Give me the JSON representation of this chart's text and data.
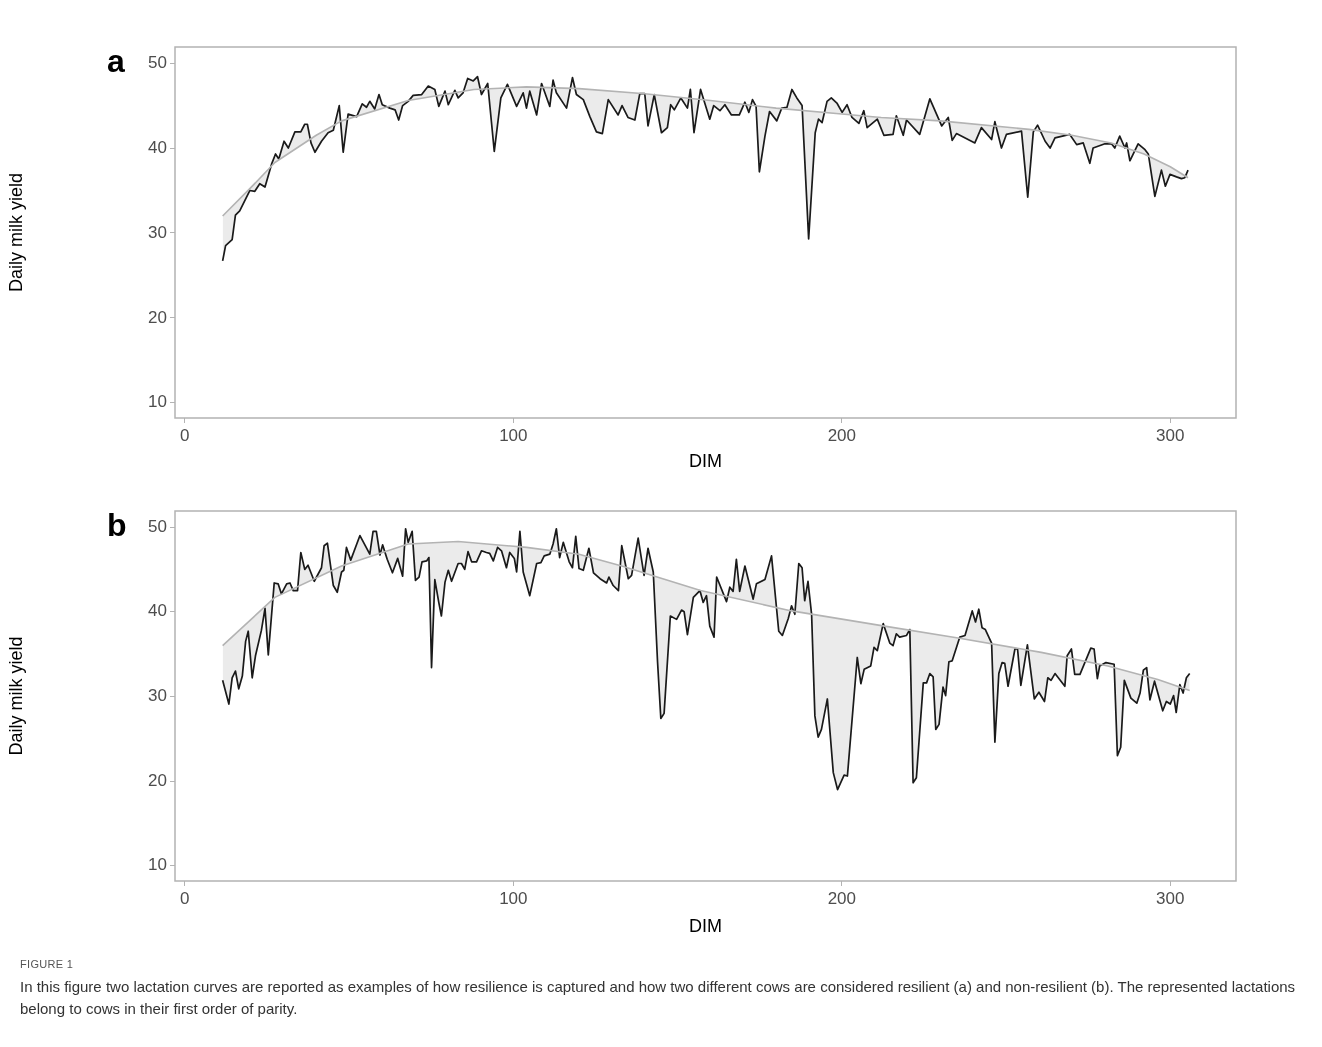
{
  "chart_data": [
    {
      "type": "line",
      "title": "a",
      "xlabel": "DIM",
      "ylabel": "Daily milk yield",
      "xlim": [
        -3,
        320
      ],
      "xticks": [
        0,
        100,
        200,
        300
      ],
      "ylim": [
        8.2,
        51.9
      ],
      "yticks": [
        10,
        20,
        30,
        40,
        50
      ],
      "legend": false,
      "series": [
        {
          "color": "#1a1a1a",
          "x": [
            11.5,
            12.4,
            14.4,
            15.4,
            16.7,
            19.8,
            21.3,
            22.8,
            24.4,
            26.4,
            27.6,
            28.6,
            30.2,
            31.5,
            33.5,
            35.3,
            36.5,
            37.3,
            38.4,
            39.6,
            41.6,
            43.6,
            45.2,
            47,
            48.2,
            49.7,
            52.3,
            54,
            55.3,
            56.3,
            57.8,
            59.1,
            60.1,
            62.4,
            64,
            65.1,
            66.3,
            68,
            69.5,
            72.1,
            74.1,
            76.1,
            77.3,
            79.2,
            80.2,
            82.2,
            83.2,
            84.7,
            86.1,
            87.8,
            89.1,
            90.3,
            92.2,
            94.2,
            96.2,
            98.2,
            101,
            103,
            104,
            105,
            107.1,
            108.6,
            111.1,
            112.1,
            113.1,
            116.2,
            118,
            119.2,
            121.3,
            123.3,
            125.3,
            127.1,
            128.9,
            131.9,
            133.1,
            134.9,
            137,
            138.5,
            140,
            141,
            142.9,
            145.1,
            146.9,
            147.9,
            149,
            151,
            153,
            153.9,
            155,
            157,
            159.8,
            161,
            162.9,
            164.4,
            166.4,
            168.8,
            170.5,
            171.7,
            172.8,
            173.9,
            174.9,
            176.6,
            178,
            180.2,
            181.7,
            183.3,
            184.8,
            186.3,
            187.9,
            189.9,
            191.9,
            192.9,
            194,
            195.5,
            196.8,
            198.5,
            200.1,
            201.6,
            203.1,
            205.2,
            206.7,
            207.7,
            210.8,
            212.8,
            215.6,
            216.6,
            218.7,
            219.7,
            223.7,
            226.8,
            230.4,
            232.4,
            233.6,
            234.9,
            240.5,
            242.5,
            245.6,
            246.6,
            248.6,
            250.1,
            254.7,
            256.6,
            258.3,
            259.6,
            261.9,
            263.4,
            264.9,
            269.4,
            271.5,
            273.5,
            275.5,
            276.5,
            280.1,
            282.1,
            283.1,
            284.6,
            286.2,
            286.7,
            287.7,
            290.2,
            292.3,
            293.3,
            295.3,
            297.3,
            298.5,
            299.9,
            301.9,
            303.4,
            304.4,
            305.4
          ],
          "values": [
            26.7,
            28.5,
            29.2,
            32.1,
            32.6,
            35.0,
            34.9,
            35.8,
            35.4,
            38.1,
            39.3,
            38.7,
            40.8,
            40.0,
            41.9,
            41.9,
            42.8,
            42.8,
            40.6,
            39.5,
            40.8,
            41.8,
            42.1,
            45.0,
            39.5,
            44.0,
            43.7,
            45.2,
            44.8,
            45.5,
            44.6,
            46.3,
            45.1,
            44.7,
            44.5,
            43.3,
            45.0,
            45.5,
            46.2,
            46.3,
            47.3,
            46.9,
            44.9,
            46.7,
            45.1,
            46.8,
            45.9,
            46.5,
            48.2,
            47.9,
            48.4,
            46.3,
            47.6,
            39.6,
            45.9,
            47.5,
            44.9,
            46.5,
            44.7,
            46.7,
            43.9,
            47.6,
            44.9,
            48.0,
            46.5,
            44.7,
            48.3,
            46.3,
            45.7,
            43.7,
            41.9,
            41.7,
            45.7,
            43.9,
            45.0,
            43.6,
            43.3,
            46.4,
            46.4,
            42.6,
            46.3,
            41.8,
            42.4,
            45.1,
            44.5,
            45.9,
            44.7,
            46.9,
            41.8,
            46.9,
            43.4,
            45.0,
            44.4,
            45.1,
            43.9,
            43.9,
            45.4,
            44.2,
            45.7,
            44.9,
            37.2,
            41.4,
            44.3,
            43.2,
            44.7,
            44.8,
            46.9,
            45.9,
            45.0,
            29.3,
            41.8,
            43.4,
            43.0,
            45.5,
            45.9,
            45.3,
            44.2,
            45.1,
            43.6,
            42.9,
            44.4,
            42.4,
            43.4,
            41.5,
            41.6,
            43.8,
            41.5,
            43.3,
            41.6,
            45.8,
            42.6,
            43.6,
            40.9,
            41.7,
            40.6,
            42.4,
            41.0,
            43.1,
            40.0,
            41.6,
            42.0,
            34.2,
            41.9,
            42.7,
            40.8,
            40.0,
            41.2,
            41.6,
            40.4,
            40.6,
            38.2,
            40.0,
            40.5,
            40.5,
            40.0,
            41.4,
            40.0,
            40.6,
            38.5,
            40.5,
            39.8,
            39.3,
            34.3,
            37.4,
            35.5,
            36.9,
            36.6,
            36.4,
            36.5,
            37.4
          ]
        },
        {
          "color": "#b3b3b3",
          "x": [
            11.5,
            20,
            27.4,
            40,
            47.7,
            68,
            88,
            104,
            120,
            140,
            160,
            180,
            200,
            212,
            230,
            257,
            270,
            282,
            292,
            300,
            305.4
          ],
          "values": [
            32.0,
            35.3,
            38.3,
            41.5,
            43.2,
            45.6,
            46.9,
            47.2,
            47.0,
            46.4,
            45.6,
            44.7,
            44.0,
            43.6,
            43.2,
            42.2,
            41.5,
            40.6,
            39.3,
            37.8,
            36.5
          ]
        }
      ]
    },
    {
      "type": "line",
      "title": "b",
      "xlabel": "DIM",
      "ylabel": "Daily milk yield",
      "xlim": [
        -3,
        320
      ],
      "xticks": [
        0,
        100,
        200,
        300
      ],
      "ylim": [
        8.2,
        51.9
      ],
      "yticks": [
        10,
        20,
        30,
        40,
        50
      ],
      "legend": false,
      "annotations": [
        "FIGURE 1",
        "In this figure two lactation curves are reported as examples of how resilience is captured and how two different cows are considered resilient (a) and non-resilient (b). The represented lactations belong to cows in their first order of parity."
      ],
      "series": [
        {
          "color": "#1a1a1a",
          "x": [
            11.5,
            13.4,
            14.4,
            15.4,
            16.4,
            17.5,
            18.5,
            19.3,
            20.5,
            21.5,
            23.3,
            24.4,
            25.4,
            27.2,
            28.4,
            29.4,
            31,
            32,
            33,
            34.3,
            35.3,
            36.5,
            37.5,
            39.4,
            41.6,
            42.4,
            43.4,
            45.2,
            46.4,
            47.7,
            48.4,
            49.2,
            50.5,
            53.3,
            56.3,
            57.3,
            58.3,
            59.4,
            60.2,
            61.6,
            63.2,
            64.8,
            66.3,
            67.2,
            68,
            69.2,
            70.2,
            71.3,
            72.2,
            73.6,
            74.3,
            75.1,
            76.1,
            77.3,
            78.1,
            79.2,
            80.2,
            81.2,
            83.2,
            84.2,
            85.2,
            86.2,
            87.3,
            88.8,
            90.3,
            91.8,
            92.8,
            93.9,
            95.2,
            96.4,
            97.9,
            98.9,
            100.3,
            101,
            102,
            103,
            105,
            107.1,
            108.4,
            109.4,
            111.1,
            112.1,
            113.1,
            114.1,
            115.2,
            117,
            118,
            119,
            120,
            121.3,
            123,
            124.4,
            126.4,
            128.4,
            129.1,
            130.4,
            132,
            133,
            135,
            136,
            138,
            139.8,
            141,
            142.6,
            143.9,
            144.9,
            145.9,
            147.8,
            149.7,
            151.2,
            152,
            153,
            154.8,
            156.8,
            157.8,
            158.8,
            159.8,
            161.1,
            161.9,
            164.9,
            165.9,
            166.9,
            167.9,
            168.9,
            170.5,
            173,
            174,
            176.6,
            178.6,
            180.8,
            181.9,
            183.7,
            184.7,
            185.7,
            186.9,
            187.9,
            188.7,
            189.7,
            190.8,
            191.8,
            192.8,
            193.8,
            195.6,
            197.4,
            198.7,
            200.7,
            201.7,
            204.7,
            205.8,
            206.8,
            208.8,
            209.8,
            210.8,
            212.6,
            214.6,
            215.6,
            216.6,
            217.6,
            219.7,
            220.7,
            221.7,
            222.7,
            224.8,
            225.8,
            226.8,
            227.8,
            228.6,
            229.6,
            230.8,
            231.6,
            232.6,
            233.6,
            235.9,
            237.5,
            239.7,
            240.7,
            241.7,
            242.7,
            243.7,
            245.6,
            246.6,
            247.8,
            248.8,
            249.6,
            250.6,
            252.7,
            253.5,
            254.5,
            256.5,
            258.6,
            260,
            261.7,
            262.7,
            263.7,
            264.9,
            267.9,
            268.6,
            269.9,
            270.9,
            272.5,
            275.8,
            276.8,
            277.8,
            278.5,
            280.4,
            282.9,
            283.9,
            284.9,
            286,
            288,
            289.8,
            290.8,
            291.8,
            292.8,
            293.8,
            295.2,
            297.7,
            298.8,
            300,
            301,
            301.8,
            302.9,
            303.9,
            304.9,
            305.9
          ],
          "values": [
            31.9,
            29.1,
            32.2,
            33.0,
            30.9,
            32.4,
            36.5,
            37.7,
            32.2,
            34.8,
            37.8,
            40.4,
            34.9,
            43.4,
            43.3,
            42.1,
            43.3,
            43.4,
            42.5,
            42.5,
            47.0,
            45.0,
            45.5,
            43.6,
            45.2,
            47.8,
            48.1,
            43.1,
            42.3,
            44.7,
            44.9,
            47.6,
            46.1,
            49.0,
            46.8,
            49.5,
            49.5,
            46.7,
            47.9,
            46.2,
            44.6,
            46.3,
            44.2,
            49.8,
            48.2,
            49.5,
            43.7,
            44.1,
            45.9,
            46.0,
            46.4,
            33.4,
            43.8,
            41.1,
            39.5,
            43.5,
            44.9,
            43.6,
            45.7,
            45.7,
            45.0,
            47.1,
            45.9,
            45.9,
            47.2,
            47.0,
            46.9,
            46.0,
            47.6,
            47.2,
            45.2,
            47.0,
            46.3,
            44.7,
            49.5,
            44.7,
            41.9,
            45.7,
            45.8,
            46.6,
            46.8,
            48.0,
            49.8,
            46.4,
            48.2,
            45.9,
            45.2,
            48.9,
            45.1,
            44.9,
            47.5,
            44.6,
            43.9,
            43.4,
            44.1,
            43.1,
            42.5,
            47.8,
            43.9,
            44.3,
            48.7,
            44.3,
            47.5,
            44.7,
            34.1,
            27.4,
            28.0,
            39.5,
            39.1,
            40.2,
            40.0,
            37.3,
            41.7,
            42.5,
            41.1,
            41.9,
            38.3,
            37.0,
            44.1,
            41.2,
            42.9,
            42.4,
            46.2,
            42.4,
            45.4,
            41.5,
            43.3,
            43.8,
            46.6,
            37.7,
            37.2,
            39.2,
            40.7,
            39.7,
            45.7,
            45.2,
            41.3,
            43.6,
            39.7,
            27.7,
            25.2,
            26.1,
            29.7,
            21.0,
            19.0,
            20.7,
            20.6,
            34.6,
            31.5,
            33.2,
            33.6,
            35.8,
            35.4,
            38.6,
            36.3,
            36.0,
            37.4,
            37.0,
            37.2,
            37.9,
            19.8,
            20.4,
            31.6,
            31.6,
            32.7,
            32.3,
            26.1,
            26.7,
            31.1,
            30.1,
            34.1,
            34.2,
            37.0,
            37.2,
            40.1,
            38.8,
            40.3,
            38.1,
            37.9,
            36.3,
            24.6,
            32.7,
            34.0,
            33.9,
            31.2,
            35.6,
            35.6,
            31.3,
            36.1,
            29.7,
            30.5,
            29.4,
            32.2,
            31.9,
            32.7,
            31.2,
            34.8,
            35.6,
            32.6,
            32.6,
            35.7,
            35.6,
            32.1,
            33.6,
            34.0,
            33.8,
            23.0,
            24.0,
            31.9,
            29.8,
            29.2,
            30.4,
            33.1,
            33.4,
            29.6,
            31.8,
            28.3,
            29.4,
            29.1,
            30.1,
            28.1,
            31.4,
            30.4,
            32.2,
            32.7
          ]
        },
        {
          "color": "#b3b3b3",
          "x": [
            11.5,
            27.4,
            47.7,
            68,
            83.2,
            104,
            120,
            133,
            157,
            184.7,
            213,
            235.4,
            260.7,
            281,
            296.2,
            305.9
          ],
          "values": [
            36.0,
            41.7,
            45.4,
            48.0,
            48.3,
            47.6,
            46.8,
            45.4,
            42.5,
            40.1,
            38.3,
            36.9,
            35.2,
            33.6,
            32.0,
            30.7
          ]
        }
      ]
    }
  ]
}
